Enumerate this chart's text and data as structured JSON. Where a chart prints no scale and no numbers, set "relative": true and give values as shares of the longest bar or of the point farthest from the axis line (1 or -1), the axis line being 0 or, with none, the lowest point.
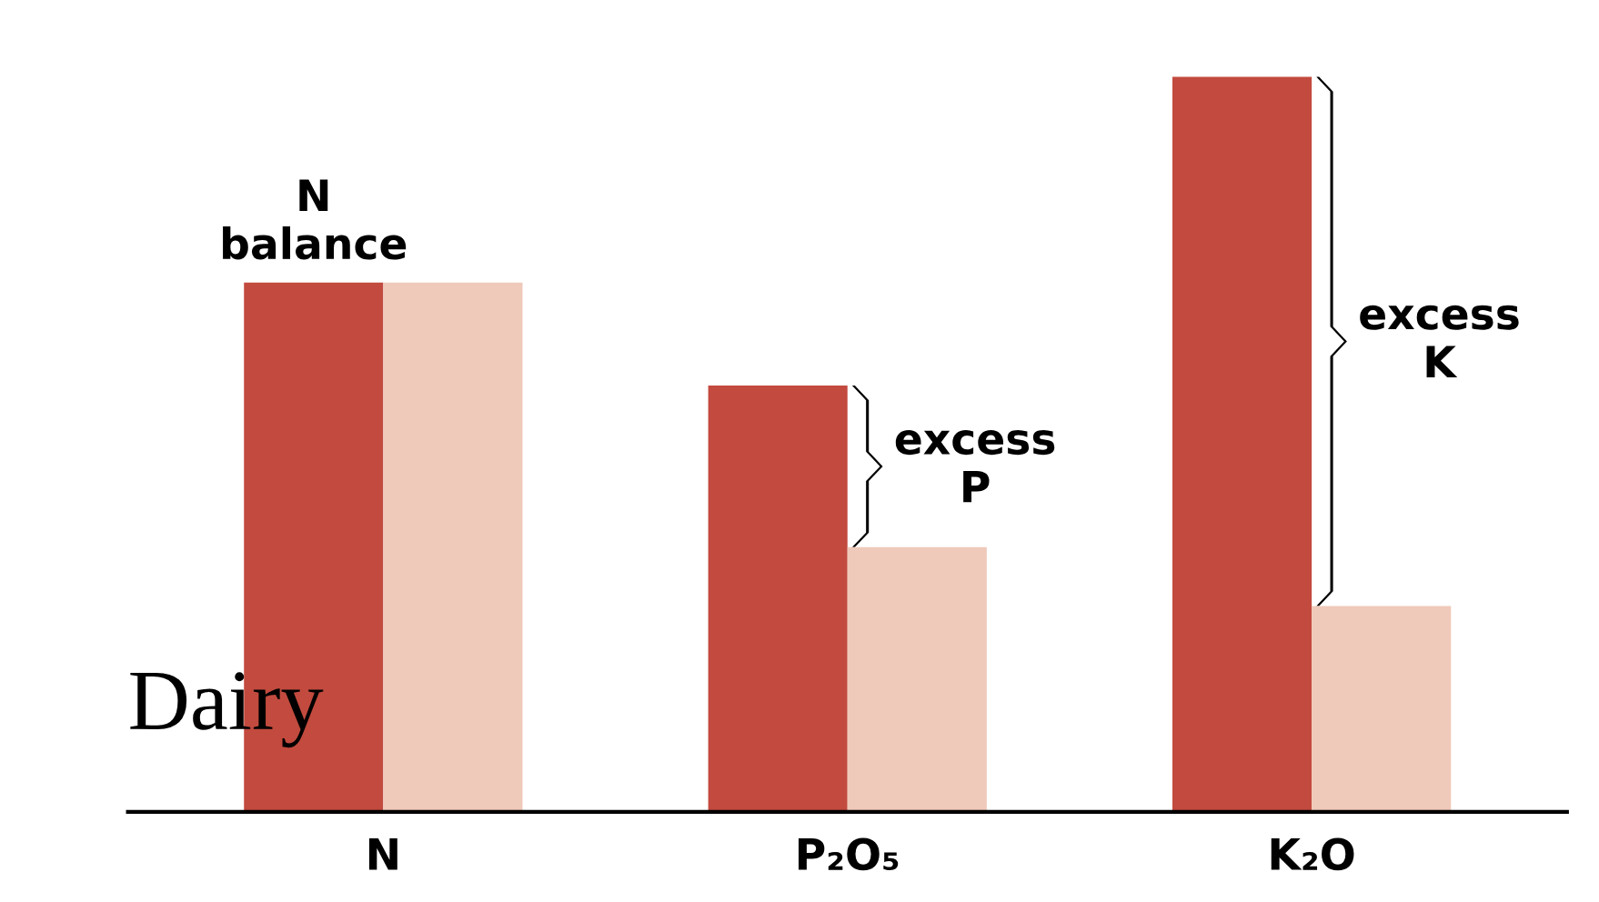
{
  "chart_data": {
    "type": "bar",
    "relative": true,
    "categories": [
      "N",
      "P₂O₅",
      "K₂O"
    ],
    "series": [
      {
        "color": "#c24a3e",
        "values": [
          0.72,
          0.58,
          1.0
        ]
      },
      {
        "color": "#efc9b9",
        "values": [
          0.72,
          0.36,
          0.28
        ]
      }
    ],
    "annotations": [
      {
        "text": "N balance",
        "x": "N",
        "y": 0.72
      },
      {
        "text": "excess P",
        "x": "P₂O₅",
        "y": 0.47
      },
      {
        "text": "excess K",
        "x": "K₂O",
        "y": 0.64
      },
      "Dairy"
    ],
    "grid": false,
    "legend": false
  }
}
